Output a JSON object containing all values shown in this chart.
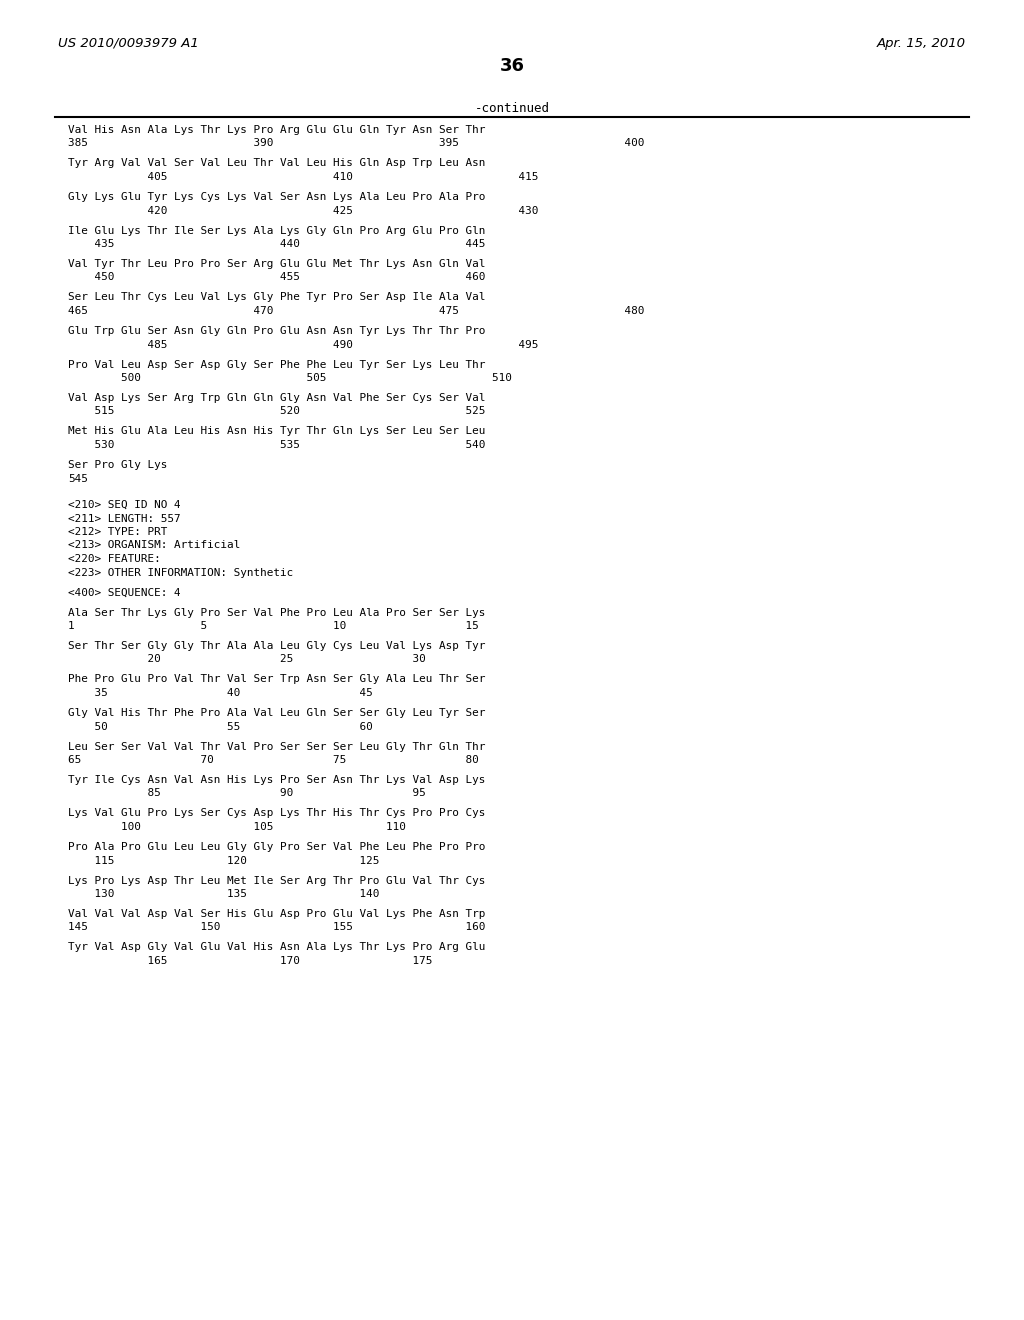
{
  "header_left": "US 2010/0093979 A1",
  "header_right": "Apr. 15, 2010",
  "page_number": "36",
  "continued_label": "-continued",
  "background_color": "#ffffff",
  "text_color": "#000000",
  "mono_font": "monospace",
  "lines": [
    {
      "text": "Val His Asn Ala Lys Thr Lys Pro Arg Glu Glu Gln Tyr Asn Ser Thr",
      "type": "seq"
    },
    {
      "text": "385                         390                         395                         400",
      "type": "num"
    },
    {
      "text": "",
      "type": "gap"
    },
    {
      "text": "Tyr Arg Val Val Ser Val Leu Thr Val Leu His Gln Asp Trp Leu Asn",
      "type": "seq"
    },
    {
      "text": "            405                         410                         415",
      "type": "num"
    },
    {
      "text": "",
      "type": "gap"
    },
    {
      "text": "Gly Lys Glu Tyr Lys Cys Lys Val Ser Asn Lys Ala Leu Pro Ala Pro",
      "type": "seq"
    },
    {
      "text": "            420                         425                         430",
      "type": "num"
    },
    {
      "text": "",
      "type": "gap"
    },
    {
      "text": "Ile Glu Lys Thr Ile Ser Lys Ala Lys Gly Gln Pro Arg Glu Pro Gln",
      "type": "seq"
    },
    {
      "text": "    435                         440                         445",
      "type": "num"
    },
    {
      "text": "",
      "type": "gap"
    },
    {
      "text": "Val Tyr Thr Leu Pro Pro Ser Arg Glu Glu Met Thr Lys Asn Gln Val",
      "type": "seq"
    },
    {
      "text": "    450                         455                         460",
      "type": "num"
    },
    {
      "text": "",
      "type": "gap"
    },
    {
      "text": "Ser Leu Thr Cys Leu Val Lys Gly Phe Tyr Pro Ser Asp Ile Ala Val",
      "type": "seq"
    },
    {
      "text": "465                         470                         475                         480",
      "type": "num"
    },
    {
      "text": "",
      "type": "gap"
    },
    {
      "text": "Glu Trp Glu Ser Asn Gly Gln Pro Glu Asn Asn Tyr Lys Thr Thr Pro",
      "type": "seq"
    },
    {
      "text": "            485                         490                         495",
      "type": "num"
    },
    {
      "text": "",
      "type": "gap"
    },
    {
      "text": "Pro Val Leu Asp Ser Asp Gly Ser Phe Phe Leu Tyr Ser Lys Leu Thr",
      "type": "seq"
    },
    {
      "text": "        500                         505                         510",
      "type": "num"
    },
    {
      "text": "",
      "type": "gap"
    },
    {
      "text": "Val Asp Lys Ser Arg Trp Gln Gln Gly Asn Val Phe Ser Cys Ser Val",
      "type": "seq"
    },
    {
      "text": "    515                         520                         525",
      "type": "num"
    },
    {
      "text": "",
      "type": "gap"
    },
    {
      "text": "Met His Glu Ala Leu His Asn His Tyr Thr Gln Lys Ser Leu Ser Leu",
      "type": "seq"
    },
    {
      "text": "    530                         535                         540",
      "type": "num"
    },
    {
      "text": "",
      "type": "gap"
    },
    {
      "text": "Ser Pro Gly Lys",
      "type": "seq"
    },
    {
      "text": "545",
      "type": "num"
    },
    {
      "text": "",
      "type": "gap"
    },
    {
      "text": "",
      "type": "gap"
    },
    {
      "text": "<210> SEQ ID NO 4",
      "type": "meta"
    },
    {
      "text": "<211> LENGTH: 557",
      "type": "meta"
    },
    {
      "text": "<212> TYPE: PRT",
      "type": "meta"
    },
    {
      "text": "<213> ORGANISM: Artificial",
      "type": "meta"
    },
    {
      "text": "<220> FEATURE:",
      "type": "meta"
    },
    {
      "text": "<223> OTHER INFORMATION: Synthetic",
      "type": "meta"
    },
    {
      "text": "",
      "type": "gap"
    },
    {
      "text": "<400> SEQUENCE: 4",
      "type": "meta"
    },
    {
      "text": "",
      "type": "gap"
    },
    {
      "text": "Ala Ser Thr Lys Gly Pro Ser Val Phe Pro Leu Ala Pro Ser Ser Lys",
      "type": "seq"
    },
    {
      "text": "1                   5                   10                  15",
      "type": "num"
    },
    {
      "text": "",
      "type": "gap"
    },
    {
      "text": "Ser Thr Ser Gly Gly Thr Ala Ala Leu Gly Cys Leu Val Lys Asp Tyr",
      "type": "seq"
    },
    {
      "text": "            20                  25                  30",
      "type": "num"
    },
    {
      "text": "",
      "type": "gap"
    },
    {
      "text": "Phe Pro Glu Pro Val Thr Val Ser Trp Asn Ser Gly Ala Leu Thr Ser",
      "type": "seq"
    },
    {
      "text": "    35                  40                  45",
      "type": "num"
    },
    {
      "text": "",
      "type": "gap"
    },
    {
      "text": "Gly Val His Thr Phe Pro Ala Val Leu Gln Ser Ser Gly Leu Tyr Ser",
      "type": "seq"
    },
    {
      "text": "    50                  55                  60",
      "type": "num"
    },
    {
      "text": "",
      "type": "gap"
    },
    {
      "text": "Leu Ser Ser Val Val Thr Val Pro Ser Ser Ser Leu Gly Thr Gln Thr",
      "type": "seq"
    },
    {
      "text": "65                  70                  75                  80",
      "type": "num"
    },
    {
      "text": "",
      "type": "gap"
    },
    {
      "text": "Tyr Ile Cys Asn Val Asn His Lys Pro Ser Asn Thr Lys Val Asp Lys",
      "type": "seq"
    },
    {
      "text": "            85                  90                  95",
      "type": "num"
    },
    {
      "text": "",
      "type": "gap"
    },
    {
      "text": "Lys Val Glu Pro Lys Ser Cys Asp Lys Thr His Thr Cys Pro Pro Cys",
      "type": "seq"
    },
    {
      "text": "        100                 105                 110",
      "type": "num"
    },
    {
      "text": "",
      "type": "gap"
    },
    {
      "text": "Pro Ala Pro Glu Leu Leu Gly Gly Pro Ser Val Phe Leu Phe Pro Pro",
      "type": "seq"
    },
    {
      "text": "    115                 120                 125",
      "type": "num"
    },
    {
      "text": "",
      "type": "gap"
    },
    {
      "text": "Lys Pro Lys Asp Thr Leu Met Ile Ser Arg Thr Pro Glu Val Thr Cys",
      "type": "seq"
    },
    {
      "text": "    130                 135                 140",
      "type": "num"
    },
    {
      "text": "",
      "type": "gap"
    },
    {
      "text": "Val Val Val Asp Val Ser His Glu Asp Pro Glu Val Lys Phe Asn Trp",
      "type": "seq"
    },
    {
      "text": "145                 150                 155                 160",
      "type": "num"
    },
    {
      "text": "",
      "type": "gap"
    },
    {
      "text": "Tyr Val Asp Gly Val Glu Val His Asn Ala Lys Thr Lys Pro Arg Glu",
      "type": "seq"
    },
    {
      "text": "            165                 170                 175",
      "type": "num"
    }
  ]
}
